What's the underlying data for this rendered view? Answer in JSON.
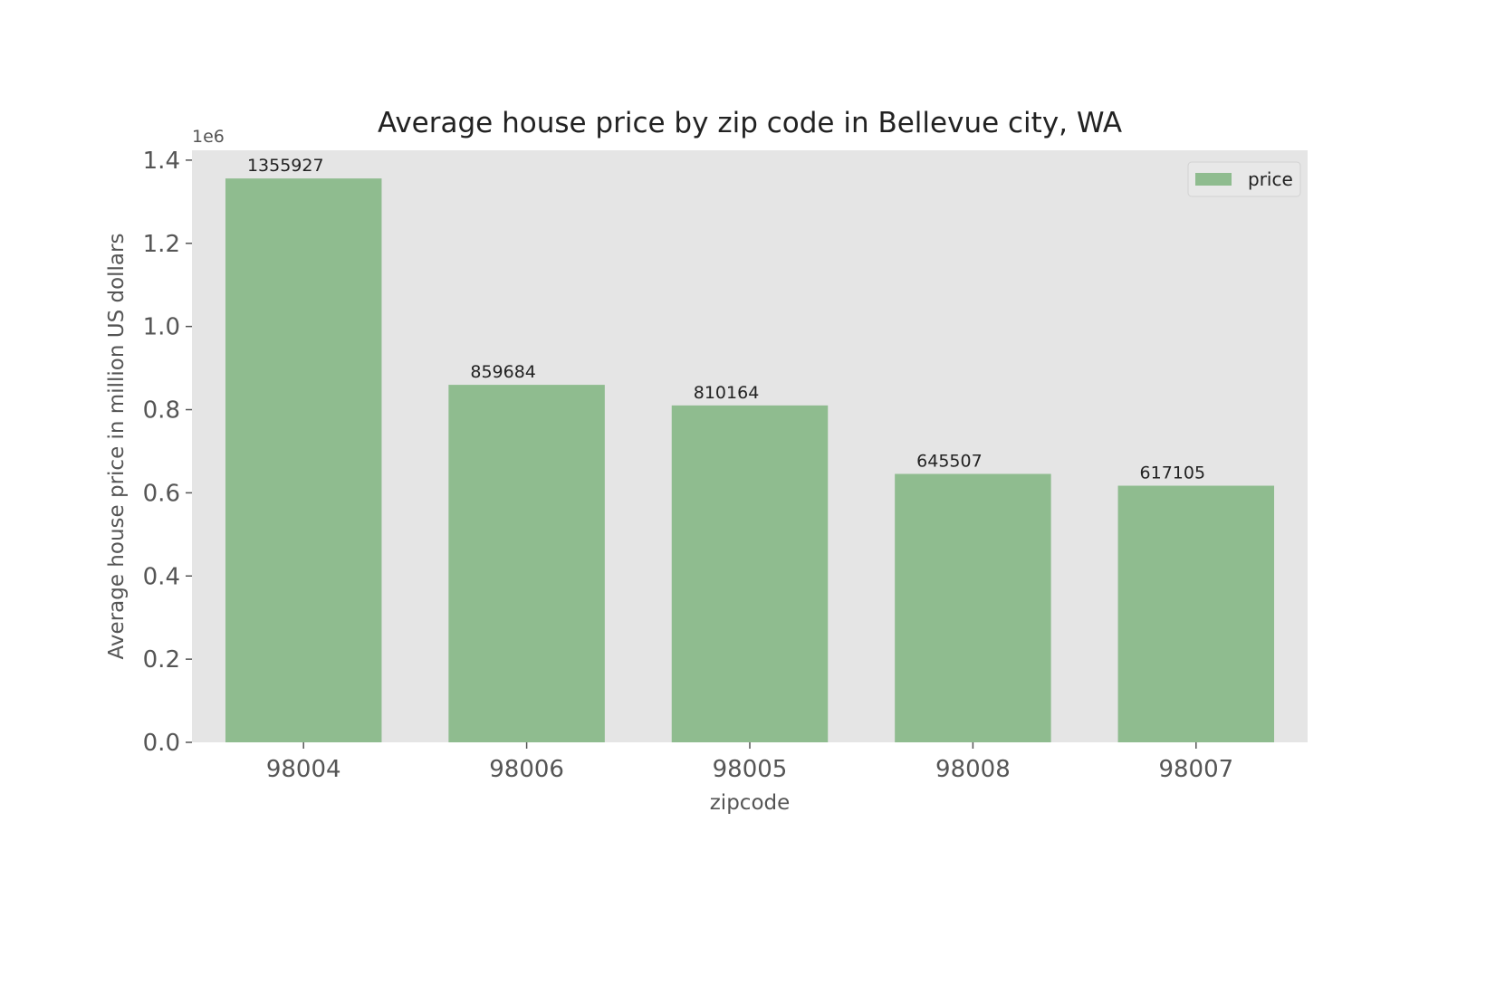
{
  "chart_data": {
    "type": "bar",
    "title": "Average house price by zip code in Bellevue city, WA",
    "xlabel": "zipcode",
    "ylabel": "Average house price in million US dollars",
    "y_offset_label": "1e6",
    "categories": [
      "98004",
      "98006",
      "98005",
      "98008",
      "98007"
    ],
    "series": [
      {
        "name": "price",
        "values": [
          1355927,
          859684,
          810164,
          645507,
          617105
        ],
        "labels": [
          "1355927",
          "859684",
          "810164",
          "645507",
          "617105"
        ],
        "color": "#8fbc8f"
      }
    ],
    "yticks": [
      0,
      200000,
      400000,
      600000,
      800000,
      1000000,
      1200000,
      1400000
    ],
    "ytick_labels": [
      "0.0",
      "0.2",
      "0.4",
      "0.6",
      "0.8",
      "1.0",
      "1.2",
      "1.4"
    ],
    "ylim": [
      0,
      1423720
    ],
    "grid": false,
    "legend_position": "top-right",
    "colors": {
      "plot_background": "#e5e5e5",
      "figure_background": "#ffffff",
      "bar": "#8fbc8f",
      "text": "#222222",
      "axis_text": "#555555"
    }
  }
}
